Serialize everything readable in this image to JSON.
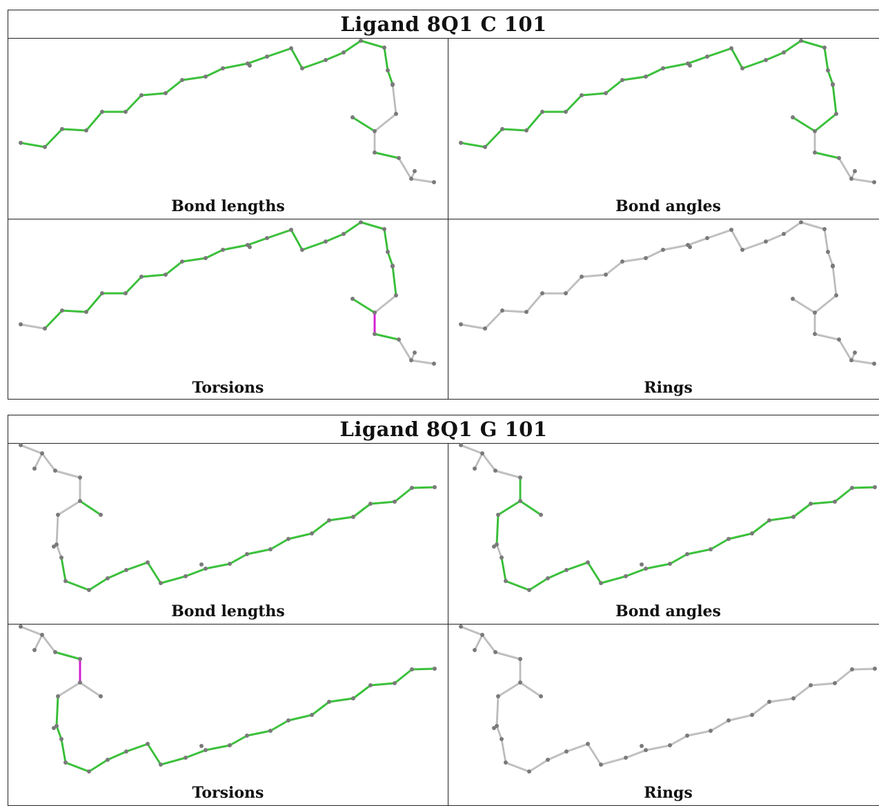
{
  "panels": [
    {
      "title": "Ligand 8Q1 C 101",
      "labels": [
        "Bond lengths",
        "Bond angles",
        "Torsions",
        "Rings"
      ]
    },
    {
      "title": "Ligand 8Q1 G 101",
      "labels": [
        "Bond lengths",
        "Bond angles",
        "Torsions",
        "Rings"
      ]
    }
  ],
  "colors": {
    "ok": "#3ec83e",
    "outlier": "#dd22dd",
    "neutral": "#c8c8c8",
    "atom": "#7a7a7a"
  }
}
